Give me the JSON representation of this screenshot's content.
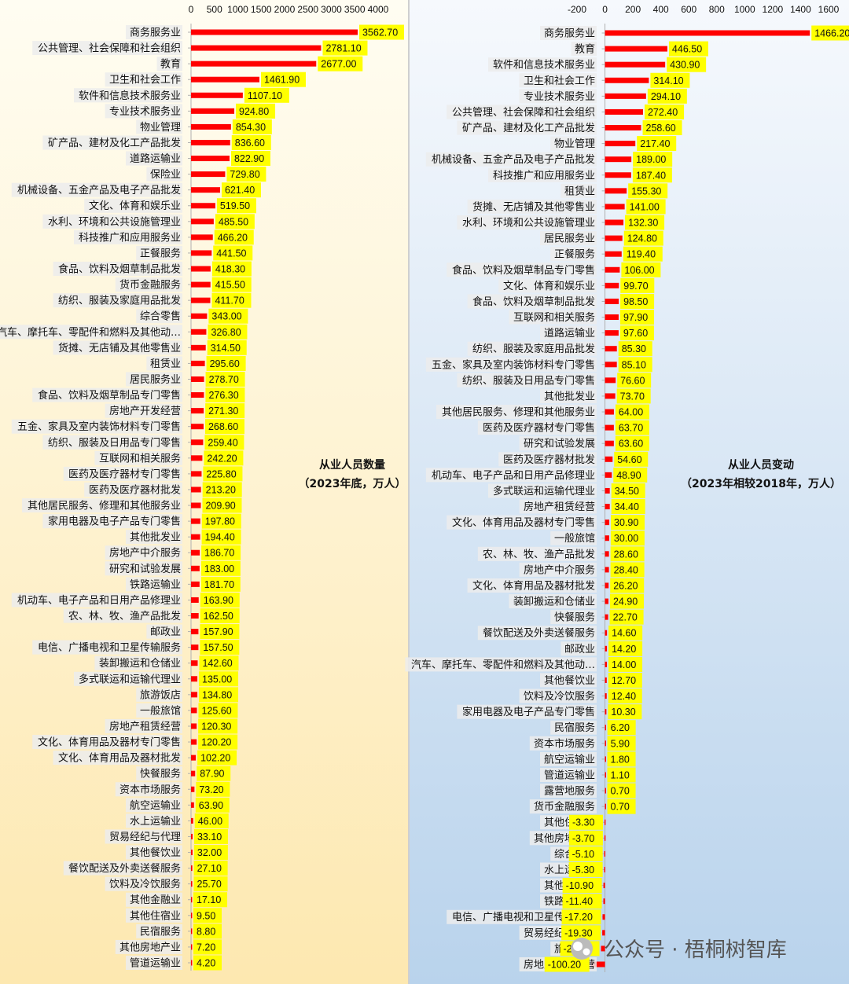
{
  "colors": {
    "bar": "#ff0000",
    "value_highlight": "#ffff00",
    "label_highlight": "#ececec",
    "left_bg_top": "#fffdf2",
    "left_bg_bottom": "#fde8b0",
    "right_bg_top": "#f6f9fd",
    "right_bg_bottom": "#b9d3ec"
  },
  "watermark": {
    "text": "公众号 · 梧桐树智库",
    "icon": "wechat-logo-icon"
  },
  "chart_data": [
    {
      "type": "bar",
      "orientation": "horizontal",
      "title_line1": "从业人员数量",
      "title_line2": "（2023年底，万人）",
      "xlim": [
        0,
        4000
      ],
      "x_ticks": [
        "0",
        "500",
        "1000",
        "1500",
        "2000",
        "2500",
        "3000",
        "3500",
        "4000"
      ],
      "categories": [
        "商务服务业",
        "公共管理、社会保障和社会组织",
        "教育",
        "卫生和社会工作",
        "软件和信息技术服务业",
        "专业技术服务业",
        "物业管理",
        "矿产品、建材及化工产品批发",
        "道路运输业",
        "保险业",
        "机械设备、五金产品及电子产品批发",
        "文化、体育和娱乐业",
        "水利、环境和公共设施管理业",
        "科技推广和应用服务业",
        "正餐服务",
        "食品、饮料及烟草制品批发",
        "货币金融服务",
        "纺织、服装及家庭用品批发",
        "综合零售",
        "汽车、摩托车、零配件和燃料及其他动…",
        "货摊、无店铺及其他零售业",
        "租赁业",
        "居民服务业",
        "食品、饮料及烟草制品专门零售",
        "房地产开发经营",
        "五金、家具及室内装饰材料专门零售",
        "纺织、服装及日用品专门零售",
        "互联网和相关服务",
        "医药及医疗器材专门零售",
        "医药及医疗器材批发",
        "其他居民服务、修理和其他服务业",
        "家用电器及电子产品专门零售",
        "其他批发业",
        "房地产中介服务",
        "研究和试验发展",
        "铁路运输业",
        "机动车、电子产品和日用产品修理业",
        "农、林、牧、渔产品批发",
        "邮政业",
        "电信、广播电视和卫星传输服务",
        "装卸搬运和仓储业",
        "多式联运和运输代理业",
        "旅游饭店",
        "一般旅馆",
        "房地产租赁经营",
        "文化、体育用品及器材专门零售",
        "文化、体育用品及器材批发",
        "快餐服务",
        "资本市场服务",
        "航空运输业",
        "水上运输业",
        "贸易经纪与代理",
        "其他餐饮业",
        "餐饮配送及外卖送餐服务",
        "饮料及冷饮服务",
        "其他金融业",
        "其他住宿业",
        "民宿服务",
        "其他房地产业",
        "管道运输业"
      ],
      "values": [
        3562.7,
        2781.1,
        2677.0,
        1461.9,
        1107.1,
        924.8,
        854.3,
        836.6,
        822.9,
        729.8,
        621.4,
        519.5,
        485.5,
        466.2,
        441.5,
        418.3,
        415.5,
        411.7,
        343.0,
        326.8,
        314.5,
        295.6,
        278.7,
        276.3,
        271.3,
        268.6,
        259.4,
        242.2,
        225.8,
        213.2,
        209.9,
        197.8,
        194.4,
        186.7,
        183.0,
        181.7,
        163.9,
        162.5,
        157.9,
        157.5,
        142.6,
        135.0,
        134.8,
        125.6,
        120.3,
        120.2,
        102.2,
        87.9,
        73.2,
        63.9,
        46.0,
        33.1,
        32.0,
        27.1,
        25.7,
        17.1,
        9.5,
        8.8,
        7.2,
        4.2
      ],
      "value_labels": [
        "3562.70",
        "2781.10",
        "2677.00",
        "1461.90",
        "1107.10",
        "924.80",
        "854.30",
        "836.60",
        "822.90",
        "729.80",
        "621.40",
        "519.50",
        "485.50",
        "466.20",
        "441.50",
        "418.30",
        "415.50",
        "411.70",
        "343.00",
        "326.80",
        "314.50",
        "295.60",
        "278.70",
        "276.30",
        "271.30",
        "268.60",
        "259.40",
        "242.20",
        "225.80",
        "213.20",
        "209.90",
        "197.80",
        "194.40",
        "186.70",
        "183.00",
        "181.70",
        "163.90",
        "162.50",
        "157.90",
        "157.50",
        "142.60",
        "135.00",
        "134.80",
        "125.60",
        "120.30",
        "120.20",
        "102.20",
        "87.90",
        "73.20",
        "63.90",
        "46.00",
        "33.10",
        "32.00",
        "27.10",
        "25.70",
        "17.10",
        "9.50",
        "8.80",
        "7.20",
        "4.20"
      ],
      "grid": false,
      "legend": "none"
    },
    {
      "type": "bar",
      "orientation": "horizontal",
      "title_line1": "从业人员变动",
      "title_line2": "（2023年相较2018年，万人）",
      "xlim": [
        -200,
        1600
      ],
      "x_ticks": [
        "-200",
        "0",
        "200",
        "400",
        "600",
        "800",
        "1000",
        "1200",
        "1400",
        "1600"
      ],
      "categories": [
        "商务服务业",
        "教育",
        "软件和信息技术服务业",
        "卫生和社会工作",
        "专业技术服务业",
        "公共管理、社会保障和社会组织",
        "矿产品、建材及化工产品批发",
        "物业管理",
        "机械设备、五金产品及电子产品批发",
        "科技推广和应用服务业",
        "租赁业",
        "货摊、无店铺及其他零售业",
        "水利、环境和公共设施管理业",
        "居民服务业",
        "正餐服务",
        "食品、饮料及烟草制品专门零售",
        "文化、体育和娱乐业",
        "食品、饮料及烟草制品批发",
        "互联网和相关服务",
        "道路运输业",
        "纺织、服装及家庭用品批发",
        "五金、家具及室内装饰材料专门零售",
        "纺织、服装及日用品专门零售",
        "其他批发业",
        "其他居民服务、修理和其他服务业",
        "医药及医疗器材专门零售",
        "研究和试验发展",
        "医药及医疗器材批发",
        "机动车、电子产品和日用产品修理业",
        "多式联运和运输代理业",
        "房地产租赁经营",
        "文化、体育用品及器材专门零售",
        "一般旅馆",
        "农、林、牧、渔产品批发",
        "房地产中介服务",
        "文化、体育用品及器材批发",
        "装卸搬运和仓储业",
        "快餐服务",
        "餐饮配送及外卖送餐服务",
        "邮政业",
        "汽车、摩托车、零配件和燃料及其他动…",
        "其他餐饮业",
        "饮料及冷饮服务",
        "家用电器及电子产品专门零售",
        "民宿服务",
        "资本市场服务",
        "航空运输业",
        "管道运输业",
        "露营地服务",
        "货币金融服务",
        "其他住宿业",
        "其他房地产业",
        "综合零售",
        "水上运输业",
        "其他金融业",
        "铁路运输业",
        "电信、广播电视和卫星传输服务",
        "贸易经纪与代理",
        "旅游饭店",
        "房地产开发经营"
      ],
      "values": [
        1466.2,
        446.5,
        430.9,
        314.1,
        294.1,
        272.4,
        258.6,
        217.4,
        189.0,
        187.4,
        155.3,
        141.0,
        132.3,
        124.8,
        119.4,
        106.0,
        99.7,
        98.5,
        97.9,
        97.6,
        85.3,
        85.1,
        76.6,
        73.7,
        64.0,
        63.7,
        63.6,
        54.6,
        48.9,
        34.5,
        34.4,
        30.9,
        30.0,
        28.6,
        28.4,
        26.2,
        24.9,
        22.7,
        14.6,
        14.2,
        14.0,
        12.7,
        12.4,
        10.3,
        6.2,
        5.9,
        1.8,
        1.1,
        0.7,
        0.7,
        -3.3,
        -3.7,
        -5.1,
        -5.3,
        -10.9,
        -11.4,
        -17.2,
        -19.3,
        -28.1,
        -100.2
      ],
      "value_labels": [
        "1466.20",
        "446.50",
        "430.90",
        "314.10",
        "294.10",
        "272.40",
        "258.60",
        "217.40",
        "189.00",
        "187.40",
        "155.30",
        "141.00",
        "132.30",
        "124.80",
        "119.40",
        "106.00",
        "99.70",
        "98.50",
        "97.90",
        "97.60",
        "85.30",
        "85.10",
        "76.60",
        "73.70",
        "64.00",
        "63.70",
        "63.60",
        "54.60",
        "48.90",
        "34.50",
        "34.40",
        "30.90",
        "30.00",
        "28.60",
        "28.40",
        "26.20",
        "24.90",
        "22.70",
        "14.60",
        "14.20",
        "14.00",
        "12.70",
        "12.40",
        "10.30",
        "6.20",
        "5.90",
        "1.80",
        "1.10",
        "0.70",
        "0.70",
        "-3.30",
        "-3.70",
        "-5.10",
        "-5.30",
        "-10.90",
        "-11.40",
        "-17.20",
        "-19.30",
        "-28.10",
        "-100.20"
      ],
      "grid": false,
      "legend": "none"
    }
  ]
}
